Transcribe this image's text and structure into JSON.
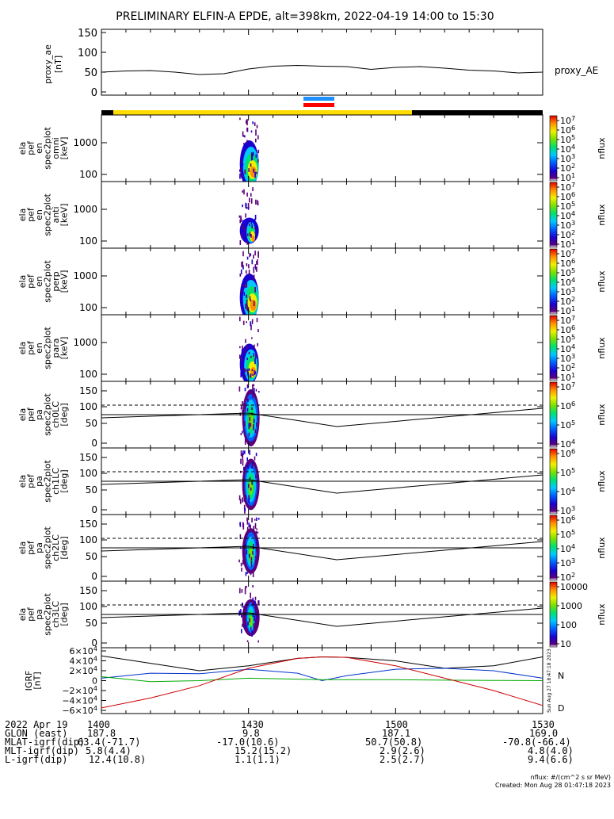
{
  "title": "PRELIMINARY ELFIN-A EPDE, alt=398km, 2022-04-19 14:00 to 15:30",
  "colors": {
    "sci_zone_yellow": "#ffdd00",
    "ascending_blue": "#1e90ff",
    "descending_red": "#ff0000",
    "igrf_black": "#000000",
    "igrf_blue": "#0033cc",
    "igrf_green": "#00aa00",
    "igrf_red": "#cc0000"
  },
  "panels": {
    "proxy_ae": {
      "ylabel_lines": [
        "proxy_ae",
        "[nT]"
      ],
      "right_label": "proxy_AE",
      "yticks": [
        "150",
        "100",
        "50",
        "0"
      ],
      "ylim": [
        0,
        150
      ]
    },
    "energy": [
      {
        "label_lines": [
          "ela",
          "pef",
          "en",
          "spec2plot",
          "omni",
          "[keV]"
        ],
        "yticks": [
          "1000",
          "100"
        ],
        "cb_label": "nflux",
        "cb_ticks": [
          "10^7",
          "10^6",
          "10^5",
          "10^4",
          "10^3",
          "10^2",
          "10^1"
        ],
        "cb_range": [
          1,
          7
        ]
      },
      {
        "label_lines": [
          "ela",
          "pef",
          "en",
          "spec2plot",
          "anti",
          "[keV]"
        ],
        "yticks": [
          "1000",
          "100"
        ],
        "cb_label": "nflux",
        "cb_ticks": [
          "10^7",
          "10^6",
          "10^5",
          "10^4",
          "10^3",
          "10^2",
          "10^1"
        ],
        "cb_range": [
          1,
          7
        ]
      },
      {
        "label_lines": [
          "ela",
          "pef",
          "en",
          "spec2plot",
          "perp",
          "[keV]"
        ],
        "yticks": [
          "1000",
          "100"
        ],
        "cb_label": "nflux",
        "cb_ticks": [
          "10^7",
          "10^6",
          "10^5",
          "10^4",
          "10^3",
          "10^2",
          "10^1"
        ],
        "cb_range": [
          1,
          7
        ]
      },
      {
        "label_lines": [
          "ela",
          "pef",
          "en",
          "spec2plot",
          "para",
          "[keV]"
        ],
        "yticks": [
          "1000",
          "100"
        ],
        "cb_label": "nflux",
        "cb_ticks": [
          "10^7",
          "10^6",
          "10^5",
          "10^4",
          "10^3",
          "10^2",
          "10^1"
        ],
        "cb_range": [
          1,
          7
        ]
      }
    ],
    "pitch": [
      {
        "label_lines": [
          "ela",
          "pef",
          "pa",
          "spec2plot",
          "ch0LC",
          "[deg]"
        ],
        "yticks": [
          "150",
          "100",
          "50",
          "0"
        ],
        "cb_label": "nflux",
        "cb_ticks": [
          "10^7",
          "10^6",
          "10^5",
          "10^4"
        ],
        "cb_range": [
          3.5,
          7
        ]
      },
      {
        "label_lines": [
          "ela",
          "pef",
          "pa",
          "spec2plot",
          "ch1LC",
          "[deg]"
        ],
        "yticks": [
          "150",
          "100",
          "50",
          "0"
        ],
        "cb_label": "nflux",
        "cb_ticks": [
          "10^6",
          "10^5",
          "10^4",
          "10^3"
        ],
        "cb_range": [
          3,
          6.3
        ]
      },
      {
        "label_lines": [
          "ela",
          "pef",
          "pa",
          "spec2plot",
          "ch2LC",
          "[deg]"
        ],
        "yticks": [
          "150",
          "100",
          "50",
          "0"
        ],
        "cb_label": "nflux",
        "cb_ticks": [
          "10^6",
          "10^5",
          "10^4",
          "10^3",
          "10^2"
        ],
        "cb_range": [
          2,
          6.3
        ]
      },
      {
        "label_lines": [
          "ela",
          "pef",
          "pa",
          "spec2plot",
          "ch3LC",
          "[deg]"
        ],
        "yticks": [
          "150",
          "100",
          "50",
          "0"
        ],
        "cb_label": "nflux",
        "cb_ticks": [
          "10000",
          "1000",
          "100",
          "10"
        ],
        "cb_range": [
          1,
          4
        ]
      }
    ],
    "igrf": {
      "label_lines": [
        "IGRF",
        "[nT]"
      ],
      "yticks": [
        "6×10^4",
        "4×10^4",
        "2×10^4",
        "0",
        "−2×10^4",
        "−4×10^4",
        "−6×10^4"
      ],
      "ylim": [
        -60000,
        60000
      ],
      "legend": [
        "N",
        "D"
      ],
      "side_text": "Sun Aug 27 18:47:18 2023"
    }
  },
  "footer": {
    "rows": [
      {
        "label": "2022 Apr 19",
        "values": [
          "1400",
          "1430",
          "1500",
          "1530"
        ]
      },
      {
        "label": "GLON (east)",
        "values": [
          "187.8",
          "9.8",
          "187.1",
          "169.0"
        ]
      },
      {
        "label": "MLAT-igrf(dip)",
        "values": [
          "63.4(-71.7)",
          "-17.0(10.6)",
          "50.7(50.8)",
          "-70.8(-66.4)"
        ]
      },
      {
        "label": "MLT-igrf(dip)",
        "values": [
          "5.8(4.4)",
          "15.2(15.2)",
          "2.9(2.6)",
          "4.8(4.0)"
        ]
      },
      {
        "label": "L-igrf(dip)",
        "values": [
          "12.4(10.8)",
          "1.1(1.1)",
          "2.5(2.7)",
          "9.4(6.6)"
        ]
      }
    ],
    "units_note": "nflux: #/(cm^2 s sr MeV)",
    "created": "Created: Mon Aug 28 01:47:18 2023"
  },
  "chart_data": [
    {
      "type": "line",
      "name": "proxy_ae",
      "x": [
        "14:00",
        "14:05",
        "14:10",
        "14:15",
        "14:20",
        "14:25",
        "14:30",
        "14:35",
        "14:40",
        "14:45",
        "14:50",
        "14:55",
        "15:00",
        "15:05",
        "15:10",
        "15:15",
        "15:20",
        "15:25",
        "15:30"
      ],
      "values": [
        50,
        53,
        54,
        50,
        44,
        46,
        58,
        65,
        67,
        65,
        64,
        57,
        62,
        64,
        60,
        55,
        53,
        48,
        50
      ],
      "ylabel": "proxy_ae [nT]",
      "ylim": [
        0,
        150
      ]
    },
    {
      "type": "heatmap",
      "name": "ela_pef_en_spec2plot panels",
      "x_range": [
        "14:00",
        "15:30"
      ],
      "observed_interval": [
        "14:28",
        "14:32"
      ],
      "energy_range_keV": [
        50,
        7000
      ],
      "peak_energy_keV": [
        60,
        300
      ],
      "log_scale": true
    },
    {
      "type": "line",
      "name": "IGRF",
      "x": [
        "14:00",
        "14:10",
        "14:20",
        "14:30",
        "14:40",
        "14:45",
        "14:50",
        "15:00",
        "15:10",
        "15:20",
        "15:30"
      ],
      "series": [
        {
          "values": [
            50000,
            35000,
            20000,
            30000,
            45000,
            48000,
            47000,
            40000,
            25000,
            30000,
            48000
          ]
        },
        {
          "values": [
            5000,
            15000,
            14000,
            23000,
            15000,
            0,
            10000,
            23000,
            25000,
            20000,
            5000
          ]
        },
        {
          "values": [
            8000,
            -2000,
            0,
            5000,
            3000,
            2000,
            2000,
            2000,
            1000,
            500,
            0
          ]
        },
        {
          "values": [
            -55000,
            -35000,
            -10000,
            25000,
            45000,
            48000,
            47000,
            30000,
            5000,
            -20000,
            -50000
          ]
        }
      ],
      "ylim": [
        -60000,
        60000
      ]
    }
  ]
}
